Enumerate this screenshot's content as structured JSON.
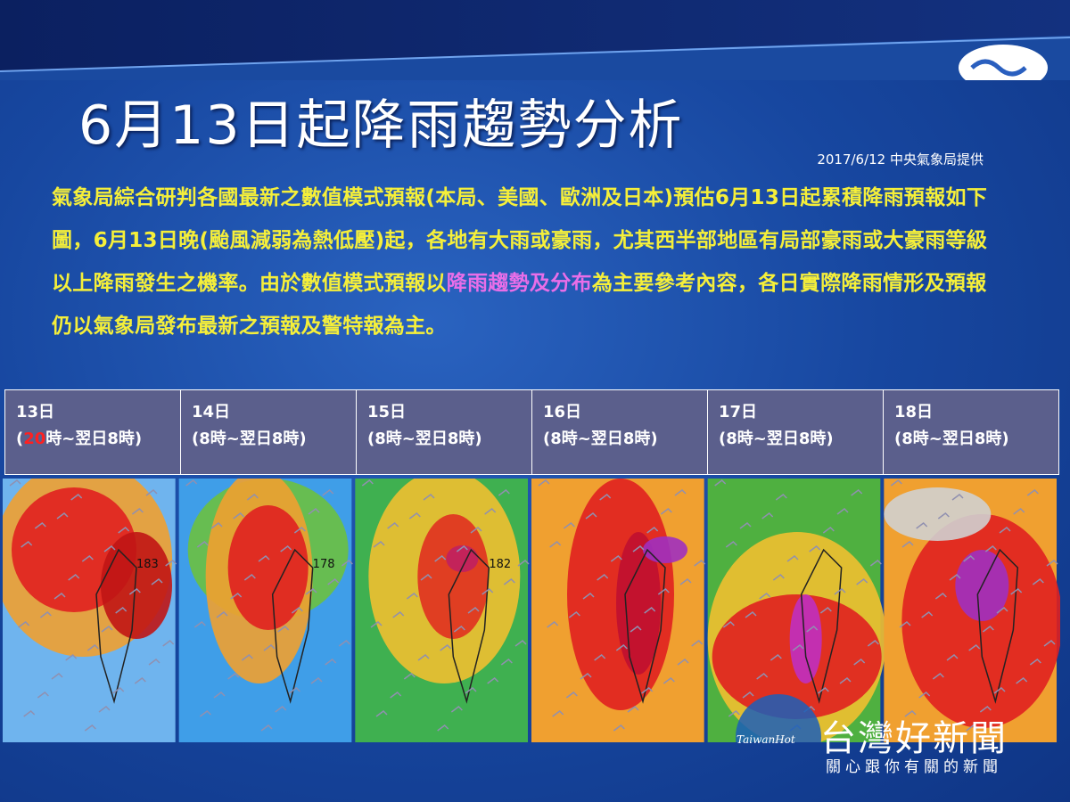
{
  "slide": {
    "title": "6月13日起降雨趨勢分析",
    "source": "2017/6/12 中央氣象局提供",
    "paragraph": [
      {
        "text": "氣象局綜合研判各國最新之數值模式預報(本局、美國、歐洲及日本)預估6月13日起累積降雨預報如下圖，6月13日晚(颱風減弱為熱低壓)起，各地有大雨或豪雨，尤其西半部地區有局部豪雨或大豪雨等級以上降雨發生之機率。由於數值模式預報以",
        "highlight": false
      },
      {
        "text": "降雨趨勢及分布",
        "highlight": true
      },
      {
        "text": "為主要參考內容，各日實際降雨情形及預報仍以氣象局發布最新之預報及警特報為主。",
        "highlight": false
      }
    ],
    "panels": [
      {
        "day": "13日",
        "period": [
          {
            "text": "(",
            "red": false
          },
          {
            "text": "20",
            "red": true
          },
          {
            "text": "時~翌日8時)",
            "red": false
          }
        ],
        "map_label": "183"
      },
      {
        "day": "14日",
        "period": [
          {
            "text": "(8時~翌日8時)",
            "red": false
          }
        ],
        "map_label": "178"
      },
      {
        "day": "15日",
        "period": [
          {
            "text": "(8時~翌日8時)",
            "red": false
          }
        ],
        "map_label": "182"
      },
      {
        "day": "16日",
        "period": [
          {
            "text": "(8時~翌日8時)",
            "red": false
          }
        ]
      },
      {
        "day": "17日",
        "period": [
          {
            "text": "(8時~翌日8時)",
            "red": false
          }
        ]
      },
      {
        "day": "18日",
        "period": [
          {
            "text": "(8時~翌日8時)",
            "red": false
          }
        ]
      }
    ],
    "watermark": {
      "logo": "TaiwanHot",
      "name": "台灣好新聞",
      "slogan": "關心跟你有關的新聞"
    }
  }
}
